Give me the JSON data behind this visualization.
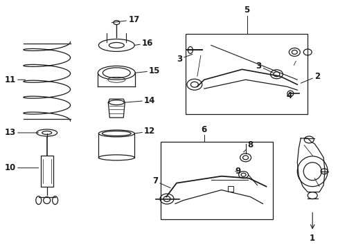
{
  "background_color": "#ffffff",
  "line_color": "#1a1a1a",
  "fig_width": 4.89,
  "fig_height": 3.6,
  "dpi": 100,
  "font_size": 8.5,
  "font_size_small": 7.5
}
